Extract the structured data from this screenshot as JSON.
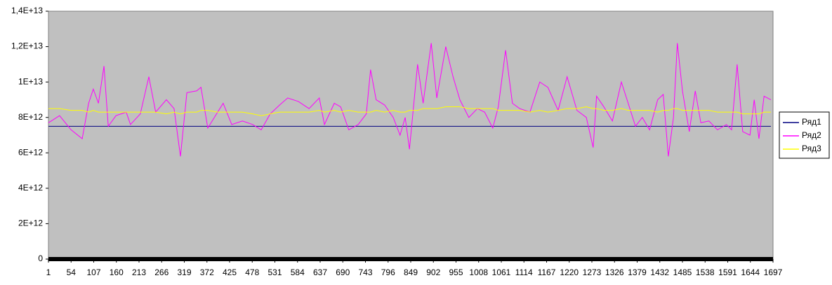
{
  "chart_data": {
    "type": "line",
    "x": [
      1,
      27,
      54,
      80,
      95,
      106,
      118,
      131,
      141,
      159,
      183,
      193,
      216,
      236,
      252,
      277,
      295,
      310,
      325,
      348,
      358,
      374,
      397,
      410,
      430,
      455,
      479,
      499,
      520,
      542,
      561,
      586,
      611,
      635,
      647,
      670,
      685,
      704,
      726,
      745,
      755,
      768,
      788,
      808,
      824,
      836,
      846,
      865,
      878,
      897,
      910,
      931,
      948,
      964,
      985,
      1005,
      1022,
      1041,
      1054,
      1071,
      1087,
      1104,
      1128,
      1151,
      1170,
      1194,
      1215,
      1238,
      1260,
      1276,
      1284,
      1301,
      1321,
      1342,
      1358,
      1375,
      1391,
      1408,
      1427,
      1440,
      1452,
      1464,
      1473,
      1485,
      1501,
      1515,
      1528,
      1547,
      1567,
      1588,
      1600,
      1613,
      1626,
      1643,
      1653,
      1664,
      1676,
      1692
    ],
    "xlim": [
      1,
      1697
    ],
    "xticks": [
      1,
      54,
      107,
      160,
      213,
      266,
      319,
      372,
      425,
      478,
      531,
      584,
      637,
      690,
      743,
      796,
      849,
      902,
      955,
      1008,
      1061,
      1114,
      1167,
      1220,
      1273,
      1326,
      1379,
      1432,
      1485,
      1538,
      1591,
      1644,
      1697
    ],
    "ylim": [
      0,
      14000000000000.0
    ],
    "yticks": [
      0,
      {
        "value": 2000000000000.0,
        "label": "2E+12"
      },
      {
        "value": 4000000000000.0,
        "label": "4E+12"
      },
      {
        "value": 6000000000000.0,
        "label": "6E+12"
      },
      {
        "value": 8000000000000.0,
        "label": "8E+12"
      },
      {
        "value": 10000000000000.0,
        "label": "1E+13"
      },
      {
        "value": 12000000000000.0,
        "label": "1,2E+13"
      },
      {
        "value": 14000000000000.0,
        "label": "1,4E+13"
      }
    ],
    "legend": "right",
    "series": [
      {
        "name": "Ряд1",
        "color": "#000080",
        "values": [
          7500000000000.0,
          7500000000000.0,
          7500000000000.0,
          7500000000000.0,
          7500000000000.0,
          7500000000000.0,
          7500000000000.0,
          7500000000000.0,
          7500000000000.0,
          7500000000000.0,
          7500000000000.0,
          7500000000000.0,
          7500000000000.0,
          7500000000000.0,
          7500000000000.0,
          7500000000000.0,
          7500000000000.0,
          7500000000000.0,
          7500000000000.0,
          7500000000000.0,
          7500000000000.0,
          7500000000000.0,
          7500000000000.0,
          7500000000000.0,
          7500000000000.0,
          7500000000000.0,
          7500000000000.0,
          7500000000000.0,
          7500000000000.0,
          7500000000000.0,
          7500000000000.0,
          7500000000000.0,
          7500000000000.0,
          7500000000000.0,
          7500000000000.0,
          7500000000000.0,
          7500000000000.0,
          7500000000000.0,
          7500000000000.0,
          7500000000000.0,
          7500000000000.0,
          7500000000000.0,
          7500000000000.0,
          7500000000000.0,
          7500000000000.0,
          7500000000000.0,
          7500000000000.0,
          7500000000000.0,
          7500000000000.0,
          7500000000000.0,
          7500000000000.0,
          7500000000000.0,
          7500000000000.0,
          7500000000000.0,
          7500000000000.0,
          7500000000000.0,
          7500000000000.0,
          7500000000000.0,
          7500000000000.0,
          7500000000000.0,
          7500000000000.0,
          7500000000000.0,
          7500000000000.0,
          7500000000000.0,
          7500000000000.0,
          7500000000000.0,
          7500000000000.0,
          7500000000000.0,
          7500000000000.0,
          7500000000000.0,
          7500000000000.0,
          7500000000000.0,
          7500000000000.0,
          7500000000000.0,
          7500000000000.0,
          7500000000000.0,
          7500000000000.0,
          7500000000000.0,
          7500000000000.0,
          7500000000000.0,
          7500000000000.0,
          7500000000000.0,
          7500000000000.0,
          7500000000000.0,
          7500000000000.0,
          7500000000000.0,
          7500000000000.0,
          7500000000000.0,
          7500000000000.0,
          7500000000000.0,
          7500000000000.0,
          7500000000000.0,
          7500000000000.0,
          7500000000000.0,
          7500000000000.0,
          7500000000000.0,
          7500000000000.0,
          7500000000000.0
        ]
      },
      {
        "name": "Ряд2",
        "color": "#ff00ff",
        "values": [
          7700000000000.0,
          8100000000000.0,
          7300000000000.0,
          6800000000000.0,
          8800000000000.0,
          9600000000000.0,
          8800000000000.0,
          10900000000000.0,
          7500000000000.0,
          8100000000000.0,
          8300000000000.0,
          7600000000000.0,
          8200000000000.0,
          10300000000000.0,
          8300000000000.0,
          9000000000000.0,
          8500000000000.0,
          5800000000000.0,
          9400000000000.0,
          9500000000000.0,
          9700000000000.0,
          7400000000000.0,
          8300000000000.0,
          8800000000000.0,
          7600000000000.0,
          7800000000000.0,
          7600000000000.0,
          7300000000000.0,
          8200000000000.0,
          8700000000000.0,
          9100000000000.0,
          8900000000000.0,
          8500000000000.0,
          9100000000000.0,
          7600000000000.0,
          8800000000000.0,
          8600000000000.0,
          7300000000000.0,
          7600000000000.0,
          8200000000000.0,
          10700000000000.0,
          9000000000000.0,
          8700000000000.0,
          8000000000000.0,
          7000000000000.0,
          8000000000000.0,
          6200000000000.0,
          11000000000000.0,
          8800000000000.0,
          12200000000000.0,
          9100000000000.0,
          12000000000000.0,
          10300000000000.0,
          9000000000000.0,
          8000000000000.0,
          8500000000000.0,
          8300000000000.0,
          7400000000000.0,
          8600000000000.0,
          11800000000000.0,
          8800000000000.0,
          8500000000000.0,
          8300000000000.0,
          10000000000000.0,
          9700000000000.0,
          8400000000000.0,
          10300000000000.0,
          8400000000000.0,
          8000000000000.0,
          6300000000000.0,
          9200000000000.0,
          8600000000000.0,
          7800000000000.0,
          10000000000000.0,
          8800000000000.0,
          7500000000000.0,
          8000000000000.0,
          7300000000000.0,
          9000000000000.0,
          9300000000000.0,
          5800000000000.0,
          8000000000000.0,
          12200000000000.0,
          9500000000000.0,
          7200000000000.0,
          9500000000000.0,
          7700000000000.0,
          7800000000000.0,
          7300000000000.0,
          7600000000000.0,
          7300000000000.0,
          11000000000000.0,
          7200000000000.0,
          7000000000000.0,
          9000000000000.0,
          6800000000000.0,
          9200000000000.0,
          9000000000000.0
        ]
      },
      {
        "name": "Ряд3",
        "color": "#ffff00",
        "values": [
          8500000000000.0,
          8500000000000.0,
          8400000000000.0,
          8400000000000.0,
          8300000000000.0,
          8400000000000.0,
          8300000000000.0,
          8300000000000.0,
          8300000000000.0,
          8300000000000.0,
          8300000000000.0,
          8300000000000.0,
          8300000000000.0,
          8300000000000.0,
          8300000000000.0,
          8200000000000.0,
          8300000000000.0,
          8200000000000.0,
          8300000000000.0,
          8300000000000.0,
          8400000000000.0,
          8400000000000.0,
          8300000000000.0,
          8300000000000.0,
          8300000000000.0,
          8300000000000.0,
          8200000000000.0,
          8100000000000.0,
          8200000000000.0,
          8300000000000.0,
          8300000000000.0,
          8300000000000.0,
          8300000000000.0,
          8400000000000.0,
          8300000000000.0,
          8400000000000.0,
          8300000000000.0,
          8400000000000.0,
          8300000000000.0,
          8300000000000.0,
          8300000000000.0,
          8400000000000.0,
          8300000000000.0,
          8400000000000.0,
          8300000000000.0,
          8300000000000.0,
          8400000000000.0,
          8400000000000.0,
          8500000000000.0,
          8500000000000.0,
          8500000000000.0,
          8600000000000.0,
          8600000000000.0,
          8600000000000.0,
          8500000000000.0,
          8500000000000.0,
          8500000000000.0,
          8500000000000.0,
          8400000000000.0,
          8400000000000.0,
          8400000000000.0,
          8400000000000.0,
          8300000000000.0,
          8400000000000.0,
          8300000000000.0,
          8400000000000.0,
          8500000000000.0,
          8500000000000.0,
          8600000000000.0,
          8500000000000.0,
          8500000000000.0,
          8400000000000.0,
          8400000000000.0,
          8500000000000.0,
          8400000000000.0,
          8400000000000.0,
          8400000000000.0,
          8400000000000.0,
          8300000000000.0,
          8400000000000.0,
          8400000000000.0,
          8500000000000.0,
          8500000000000.0,
          8400000000000.0,
          8400000000000.0,
          8400000000000.0,
          8400000000000.0,
          8400000000000.0,
          8300000000000.0,
          8300000000000.0,
          8300000000000.0,
          8300000000000.0,
          8200000000000.0,
          8200000000000.0,
          8200000000000.0,
          8200000000000.0,
          8300000000000.0,
          8300000000000.0
        ]
      }
    ]
  }
}
